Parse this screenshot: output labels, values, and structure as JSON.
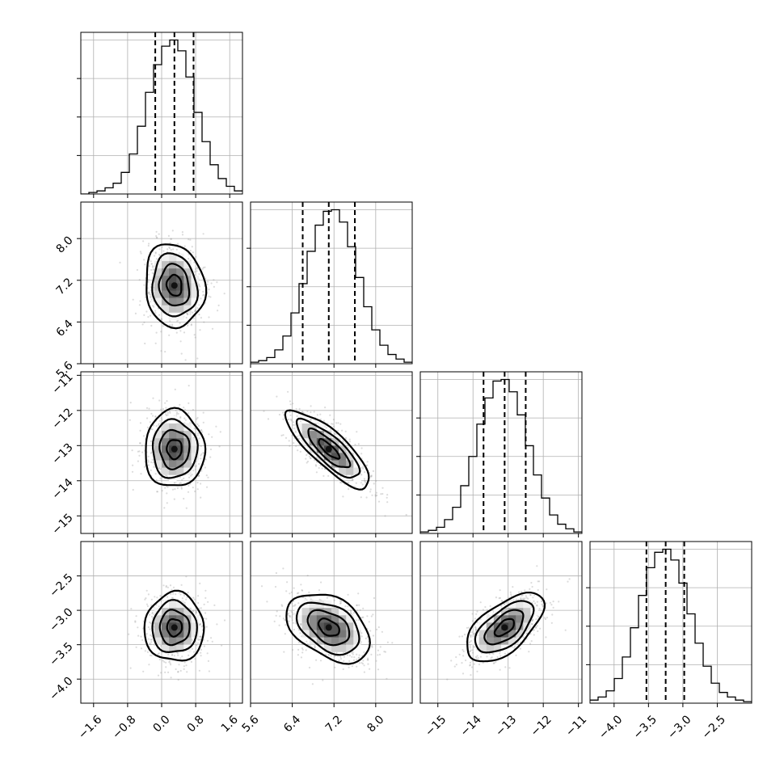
{
  "chart_data": {
    "type": "corner",
    "ndim": 4,
    "grid": true,
    "params": [
      {
        "range": [
          -1.9,
          1.9
        ],
        "ticks": [
          "-1.6",
          "-0.8",
          "0.0",
          "0.8",
          "1.6"
        ],
        "tickvals": [
          -1.6,
          -0.8,
          0.0,
          0.8,
          1.6
        ],
        "mean": 0.3,
        "sigma": 0.35,
        "quantiles": [
          -0.15,
          0.3,
          0.75
        ]
      },
      {
        "range": [
          5.6,
          8.7
        ],
        "ticks": [
          "5.6",
          "6.4",
          "7.2",
          "8.0"
        ],
        "tickvals": [
          5.6,
          6.4,
          7.2,
          8.0
        ],
        "mean": 7.1,
        "sigma": 0.4,
        "quantiles": [
          6.6,
          7.1,
          7.6
        ]
      },
      {
        "range": [
          -15.5,
          -10.9
        ],
        "ticks": [
          "-15",
          "-14",
          "-13",
          "-12",
          "-11"
        ],
        "tickvals": [
          -15,
          -14,
          -13,
          -12,
          -11
        ],
        "mean": -13.1,
        "sigma": 0.55,
        "quantiles": [
          -13.7,
          -13.1,
          -12.5
        ]
      },
      {
        "range": [
          -4.35,
          -2.0
        ],
        "ticks": [
          "-4.0",
          "-3.5",
          "-3.0",
          "-2.5"
        ],
        "tickvals": [
          -4.0,
          -3.5,
          -3.0,
          -2.5
        ],
        "mean": -3.25,
        "sigma": 0.25,
        "quantiles": [
          -3.53,
          -3.25,
          -2.98
        ]
      }
    ],
    "correlations": [
      {
        "pair": [
          1,
          0
        ],
        "rho": -0.1
      },
      {
        "pair": [
          2,
          0
        ],
        "rho": 0.0
      },
      {
        "pair": [
          2,
          1
        ],
        "rho": -0.82
      },
      {
        "pair": [
          3,
          0
        ],
        "rho": 0.0
      },
      {
        "pair": [
          3,
          1
        ],
        "rho": -0.4
      },
      {
        "pair": [
          3,
          2
        ],
        "rho": 0.6
      }
    ],
    "histograms": [
      {
        "param": 0,
        "edges_from": -1.9,
        "bin_width": 0.19,
        "counts": [
          0.0,
          0.01,
          0.02,
          0.04,
          0.07,
          0.14,
          0.26,
          0.44,
          0.66,
          0.84,
          0.96,
          1.0,
          0.93,
          0.76,
          0.53,
          0.34,
          0.19,
          0.1,
          0.05,
          0.02
        ]
      },
      {
        "param": 1,
        "edges_from": 5.6,
        "bin_width": 0.155,
        "counts": [
          0.01,
          0.02,
          0.04,
          0.09,
          0.18,
          0.33,
          0.52,
          0.73,
          0.9,
          0.99,
          1.0,
          0.92,
          0.76,
          0.56,
          0.37,
          0.22,
          0.12,
          0.06,
          0.03,
          0.01
        ]
      },
      {
        "param": 2,
        "edges_from": -15.5,
        "bin_width": 0.23,
        "counts": [
          0.01,
          0.02,
          0.04,
          0.09,
          0.17,
          0.31,
          0.5,
          0.71,
          0.88,
          0.99,
          1.0,
          0.92,
          0.77,
          0.57,
          0.38,
          0.23,
          0.12,
          0.06,
          0.03,
          0.01
        ]
      },
      {
        "param": 3,
        "edges_from": -4.35,
        "bin_width": 0.1175,
        "counts": [
          0.02,
          0.04,
          0.08,
          0.16,
          0.3,
          0.49,
          0.7,
          0.88,
          0.98,
          1.0,
          0.93,
          0.78,
          0.58,
          0.39,
          0.24,
          0.13,
          0.07,
          0.04,
          0.02,
          0.01
        ]
      }
    ],
    "contour_levels": [
      0.5,
      1.0,
      1.5,
      2.0
    ]
  }
}
